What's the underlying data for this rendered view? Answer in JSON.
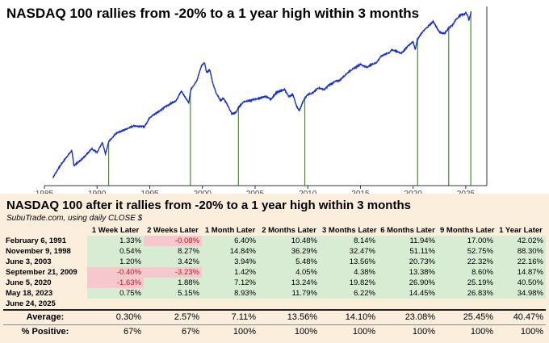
{
  "chart_data": {
    "type": "line",
    "title": "NASDAQ 100 rallies from -20% to a 1 year high within 3 months",
    "x_ticks": [
      "1985",
      "1990",
      "1995",
      "2000",
      "2005",
      "2010",
      "2015",
      "2020",
      "2025"
    ],
    "xlim": [
      1985,
      2027
    ],
    "y_scale": "log",
    "y_axis_labels_shown": false,
    "series": [
      {
        "color": "#1a2fbf",
        "x": [
          1985.8,
          1986.3,
          1987.0,
          1987.6,
          1987.8,
          1988.5,
          1989.5,
          1990.0,
          1990.5,
          1990.8,
          1991.1,
          1991.8,
          1992.5,
          1993.5,
          1994.5,
          1995.0,
          1995.5,
          1996.5,
          1997.5,
          1998.0,
          1998.7,
          1998.9,
          1999.5,
          1999.9,
          2000.2,
          2000.4,
          2000.7,
          2001.0,
          2001.3,
          2001.5,
          2001.7,
          2002.0,
          2002.4,
          2002.8,
          2003.2,
          2003.4,
          2003.9,
          2004.5,
          2005.3,
          2006.0,
          2006.5,
          2007.0,
          2007.8,
          2008.2,
          2008.6,
          2008.9,
          2009.2,
          2009.5,
          2009.7,
          2010.0,
          2010.5,
          2011.0,
          2011.6,
          2012.0,
          2012.7,
          2013.0,
          2014.0,
          2015.0,
          2015.6,
          2016.1,
          2016.5,
          2017.0,
          2017.8,
          2018.0,
          2018.9,
          2019.5,
          2020.0,
          2020.2,
          2020.4,
          2020.9,
          2021.5,
          2021.9,
          2022.2,
          2022.5,
          2022.8,
          2023.0,
          2023.4,
          2023.8,
          2024.0,
          2024.5,
          2024.9,
          2025.0,
          2025.2,
          2025.3,
          2025.45,
          2025.5
        ],
        "y": [
          145,
          190,
          260,
          330,
          210,
          250,
          350,
          310,
          420,
          300,
          430,
          560,
          610,
          700,
          680,
          900,
          1000,
          1250,
          1500,
          2000,
          1400,
          2100,
          2800,
          4300,
          4700,
          3500,
          3800,
          2500,
          1900,
          1700,
          1500,
          1600,
          1300,
          1000,
          1050,
          1200,
          1450,
          1500,
          1600,
          1700,
          1550,
          1900,
          2100,
          1700,
          1800,
          1300,
          1100,
          1400,
          1600,
          1800,
          1900,
          2200,
          2100,
          2400,
          2700,
          2750,
          3700,
          4500,
          4100,
          4500,
          4700,
          5800,
          6500,
          7000,
          6300,
          7800,
          9000,
          7000,
          9500,
          12000,
          14500,
          16500,
          14000,
          12000,
          11500,
          11500,
          13500,
          15000,
          17000,
          20000,
          20500,
          21500,
          19500,
          17000,
          20500,
          22400
        ]
      }
    ],
    "markers": [
      1991.1,
      1998.86,
      2003.42,
      2009.72,
      2020.43,
      2023.38,
      2025.48
    ],
    "marker_color": "#4d8b2a"
  },
  "table": {
    "title": "NASDAQ 100 after it rallies from -20% to a 1 year high within 3 months",
    "subtitle": "SubuTrade.com, using daily CLOSE $",
    "headers": [
      "",
      "1 Week Later",
      "2 Weeks Later",
      "1 Month Later",
      "2 Months Later",
      "3 Months Later",
      "6 Months Later",
      "9 Months Later",
      "1 Year Later"
    ],
    "rows": [
      {
        "date": "February 6, 1991",
        "values": [
          "1.33%",
          "-0.08%",
          "6.40%",
          "10.48%",
          "8.14%",
          "11.94%",
          "17.00%",
          "42.02%"
        ]
      },
      {
        "date": "November 9, 1998",
        "values": [
          "0.54%",
          "8.27%",
          "14.84%",
          "36.29%",
          "32.47%",
          "51.11%",
          "52.75%",
          "88.30%"
        ]
      },
      {
        "date": "June 3, 2003",
        "values": [
          "1.20%",
          "3.42%",
          "3.94%",
          "5.48%",
          "13.56%",
          "20.73%",
          "22.32%",
          "22.16%"
        ]
      },
      {
        "date": "September 21, 2009",
        "values": [
          "-0.40%",
          "-3.23%",
          "1.42%",
          "4.05%",
          "4.38%",
          "13.38%",
          "8.60%",
          "14.87%"
        ]
      },
      {
        "date": "June 5, 2020",
        "values": [
          "-1.63%",
          "1.88%",
          "7.12%",
          "13.24%",
          "19.82%",
          "26.90%",
          "25.19%",
          "40.50%"
        ]
      },
      {
        "date": "May 18, 2023",
        "values": [
          "0.75%",
          "5.15%",
          "8.93%",
          "11.79%",
          "6.22%",
          "14.45%",
          "26.83%",
          "34.98%"
        ]
      },
      {
        "date": "June 24, 2025",
        "values": [
          "",
          "",
          "",
          "",
          "",
          "",
          "",
          ""
        ]
      }
    ],
    "average_label": "Average:",
    "average": [
      "0.30%",
      "2.57%",
      "7.11%",
      "13.56%",
      "14.10%",
      "23.08%",
      "25.45%",
      "40.47%"
    ],
    "positive_label": "% Positive:",
    "positive": [
      "67%",
      "67%",
      "100%",
      "100%",
      "100%",
      "100%",
      "100%",
      "100%"
    ]
  }
}
